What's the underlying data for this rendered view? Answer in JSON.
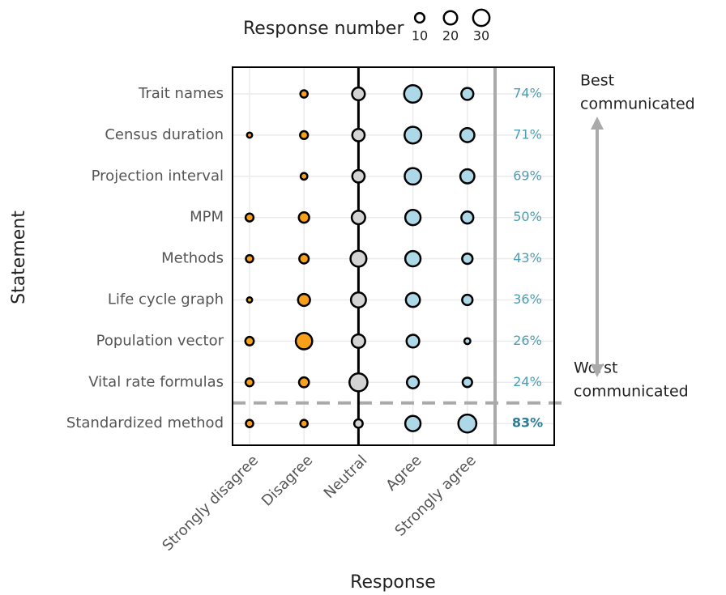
{
  "chart_data": {
    "type": "bubble",
    "x_label": "Response",
    "y_label": "Statement",
    "categories": [
      "Trait names",
      "Census duration",
      "Projection interval",
      "MPM",
      "Methods",
      "Life cycle graph",
      "Population vector",
      "Vital rate formulas",
      "Standardized method"
    ],
    "series": [
      {
        "name": "Strongly disagree",
        "color": "#f8a01a",
        "values": [
          0,
          3,
          0,
          7,
          6,
          3,
          8,
          7,
          6
        ]
      },
      {
        "name": "Disagree",
        "color": "#f8a01a",
        "values": [
          6,
          7,
          5,
          12,
          10,
          16,
          30,
          11,
          6
        ]
      },
      {
        "name": "Neutral",
        "color": "#d3d3d3",
        "values": [
          18,
          17,
          17,
          20,
          28,
          25,
          20,
          36,
          8
        ]
      },
      {
        "name": "Agree",
        "color": "#acd8e8",
        "values": [
          34,
          31,
          30,
          26,
          26,
          22,
          18,
          16,
          26
        ]
      },
      {
        "name": "Strongly agree",
        "color": "#acd8e8",
        "values": [
          16,
          22,
          22,
          16,
          12,
          12,
          4,
          10,
          36
        ]
      }
    ],
    "agreement": [
      74,
      71,
      69,
      50,
      43,
      36,
      26,
      24,
      83
    ],
    "agreement_labels": [
      "74%",
      "71%",
      "69%",
      "50%",
      "43%",
      "36%",
      "26%",
      "24%",
      "83%"
    ],
    "size_legend": {
      "title": "Response number",
      "values": [
        10,
        20,
        30
      ]
    },
    "annotations": {
      "best": [
        "Best",
        "communicated"
      ],
      "worst": [
        "Worst",
        "communicated"
      ]
    }
  }
}
